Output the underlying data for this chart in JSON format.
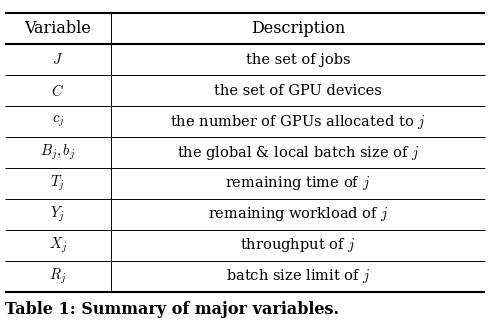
{
  "headers": [
    "Variable",
    "Description"
  ],
  "rows": [
    [
      "$J$",
      "the set of jobs"
    ],
    [
      "$C$",
      "the set of GPU devices"
    ],
    [
      "$c_j$",
      "the number of GPUs allocated to $j$"
    ],
    [
      "$B_j,b_j$",
      "the global & local batch size of $j$"
    ],
    [
      "$T_j$",
      "remaining time of $j$"
    ],
    [
      "$Y_j$",
      "remaining workload of $j$"
    ],
    [
      "$X_j$",
      "throughput of $j$"
    ],
    [
      "$R_j$",
      "batch size limit of $j$"
    ]
  ],
  "caption": "Table 1: Summary of major variables.",
  "bg_color": "#ffffff",
  "line_color": "#000000",
  "text_color": "#000000",
  "header_fontsize": 11.5,
  "cell_fontsize": 10.5,
  "caption_fontsize": 11.5,
  "col_split": 0.22,
  "lw_thick": 1.5,
  "lw_thin": 0.7
}
